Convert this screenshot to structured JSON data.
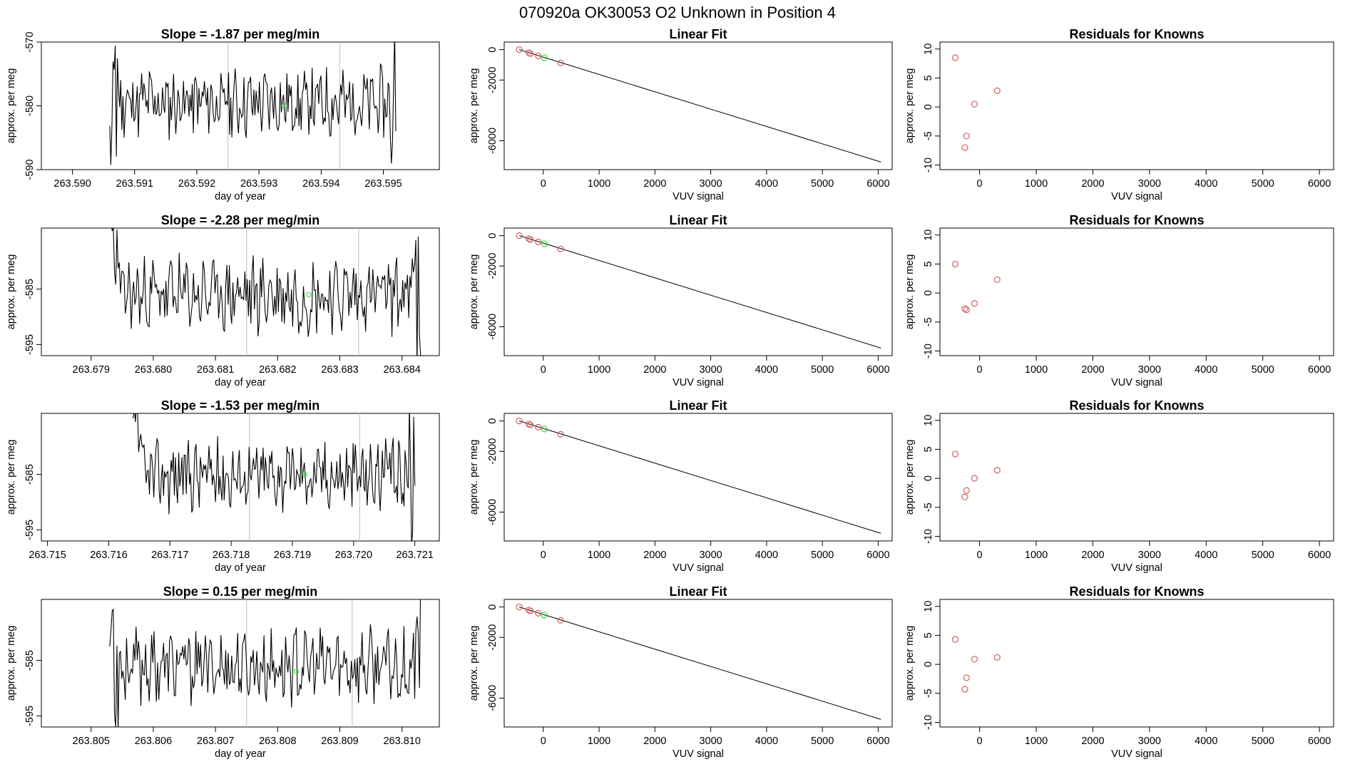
{
  "figure": {
    "title": "070920a      OK30053    O2 Unknown in Position  4"
  },
  "colors": {
    "known": "#d0605e",
    "unknown": "#33dd33",
    "line": "#000000",
    "vline": "#c8c8c8"
  },
  "rows": [
    {
      "timeseries": {
        "title": "Slope =  -1.87  per meg/min",
        "xlabel": "day of year",
        "ylabel": "approx. per meg",
        "xlim": [
          263.5895,
          263.5959
        ],
        "ylim": [
          -590,
          -570
        ],
        "xticks": [
          263.59,
          263.591,
          263.592,
          263.593,
          263.594,
          263.595
        ],
        "xtick_labels": [
          "263.590",
          "263.591",
          "263.592",
          "263.593",
          "263.594",
          "263.595"
        ],
        "yticks": [
          -590,
          -580,
          -570
        ],
        "ytick_labels": [
          "-590",
          "-580",
          "-570"
        ],
        "x_start": 263.5906,
        "x_end": 263.5952,
        "seed": 11,
        "center": -579.5,
        "amp": 4.6,
        "vlines": [
          263.5925,
          263.5943
        ],
        "unknown_point": [
          263.5934,
          -580
        ]
      },
      "fit": {
        "title": "Linear Fit",
        "xlabel": "VUV signal",
        "ylabel": "approx. per meg",
        "xlim": [
          -700,
          6250
        ],
        "ylim": [
          -7900,
          500
        ],
        "xticks": [
          0,
          1000,
          2000,
          3000,
          4000,
          5000,
          6000
        ],
        "xtick_labels": [
          "0",
          "1000",
          "2000",
          "3000",
          "4000",
          "5000",
          "6000"
        ],
        "yticks": [
          -6000,
          -2000,
          0
        ],
        "ytick_labels": [
          "-6000",
          "-2000",
          "0"
        ],
        "line": [
          [
            -430,
            0
          ],
          [
            6050,
            -7400
          ]
        ],
        "known_points": [
          [
            -430,
            2
          ],
          [
            -260,
            -200
          ],
          [
            -230,
            -260
          ],
          [
            -90,
            -410
          ],
          [
            310,
            -880
          ]
        ],
        "unknown_points": [
          [
            20,
            -530
          ]
        ]
      },
      "resid": {
        "title": "Residuals for Knowns",
        "xlabel": "VUV signal",
        "xlim": [
          -700,
          6250
        ],
        "ylim": [
          -10.8,
          11.2
        ],
        "xticks": [
          0,
          1000,
          2000,
          3000,
          4000,
          5000,
          6000
        ],
        "xtick_labels": [
          "0",
          "1000",
          "2000",
          "3000",
          "4000",
          "5000",
          "6000"
        ],
        "yticks": [
          -10,
          -5,
          0,
          5,
          10
        ],
        "ytick_labels": [
          "-10",
          "-5",
          "0",
          "5",
          "10"
        ],
        "points": [
          [
            -430,
            8.5
          ],
          [
            -260,
            -7
          ],
          [
            -230,
            -5
          ],
          [
            -90,
            0.5
          ],
          [
            310,
            2.8
          ]
        ]
      }
    },
    {
      "timeseries": {
        "title": "Slope =  -2.28  per meg/min",
        "xlabel": "day of year",
        "ylabel": "approx. per meg",
        "xlim": [
          263.6782,
          263.6846
        ],
        "ylim": [
          -597,
          -574
        ],
        "xticks": [
          263.679,
          263.68,
          263.681,
          263.682,
          263.683,
          263.684
        ],
        "xtick_labels": [
          "263.679",
          "263.680",
          "263.681",
          "263.682",
          "263.683",
          "263.684"
        ],
        "yticks": [
          -595,
          -585
        ],
        "ytick_labels": [
          "-595",
          "-585"
        ],
        "x_start": 263.6793,
        "x_end": 263.6843,
        "seed": 23,
        "center": -586,
        "amp": 5.8,
        "vlines": [
          263.6815,
          263.6833
        ],
        "unknown_point": [
          263.6825,
          -586
        ]
      },
      "fit": {
        "title": "Linear Fit",
        "xlabel": "VUV signal",
        "ylabel": "approx. per meg",
        "xlim": [
          -700,
          6250
        ],
        "ylim": [
          -7900,
          500
        ],
        "xticks": [
          0,
          1000,
          2000,
          3000,
          4000,
          5000,
          6000
        ],
        "xtick_labels": [
          "0",
          "1000",
          "2000",
          "3000",
          "4000",
          "5000",
          "6000"
        ],
        "yticks": [
          -6000,
          -2000,
          0
        ],
        "ytick_labels": [
          "-6000",
          "-2000",
          "0"
        ],
        "line": [
          [
            -430,
            0
          ],
          [
            6050,
            -7400
          ]
        ],
        "known_points": [
          [
            -430,
            2
          ],
          [
            -260,
            -200
          ],
          [
            -230,
            -260
          ],
          [
            -90,
            -410
          ],
          [
            310,
            -880
          ]
        ],
        "unknown_points": [
          [
            20,
            -530
          ]
        ]
      },
      "resid": {
        "title": "Residuals for Knowns",
        "xlabel": "VUV signal",
        "xlim": [
          -700,
          6250
        ],
        "ylim": [
          -10.8,
          11.2
        ],
        "xticks": [
          0,
          1000,
          2000,
          3000,
          4000,
          5000,
          6000
        ],
        "xtick_labels": [
          "0",
          "1000",
          "2000",
          "3000",
          "4000",
          "5000",
          "6000"
        ],
        "yticks": [
          -10,
          -5,
          0,
          5,
          10
        ],
        "ytick_labels": [
          "-10",
          "-5",
          "0",
          "5",
          "10"
        ],
        "points": [
          [
            -430,
            5
          ],
          [
            -260,
            -2.7
          ],
          [
            -230,
            -2.9
          ],
          [
            -90,
            -1.8
          ],
          [
            310,
            2.3
          ]
        ]
      }
    },
    {
      "timeseries": {
        "title": "Slope =  -1.53  per meg/min",
        "xlabel": "day of year",
        "ylabel": "approx. per meg",
        "xlim": [
          263.7149,
          263.7214
        ],
        "ylim": [
          -597,
          -574
        ],
        "xticks": [
          263.715,
          263.716,
          263.717,
          263.718,
          263.719,
          263.72,
          263.721
        ],
        "xtick_labels": [
          "263.715",
          "263.716",
          "263.717",
          "263.718",
          "263.719",
          "263.720",
          "263.721"
        ],
        "yticks": [
          -595,
          -585
        ],
        "ytick_labels": [
          "-595",
          "-585"
        ],
        "x_start": 263.7164,
        "x_end": 263.721,
        "seed": 37,
        "center": -585,
        "amp": 5.4,
        "vlines": [
          263.7183,
          263.7201
        ],
        "unknown_point": [
          263.7192,
          -585
        ]
      },
      "fit": {
        "title": "Linear Fit",
        "xlabel": "VUV signal",
        "ylabel": "approx. per meg",
        "xlim": [
          -700,
          6250
        ],
        "ylim": [
          -7900,
          500
        ],
        "xticks": [
          0,
          1000,
          2000,
          3000,
          4000,
          5000,
          6000
        ],
        "xtick_labels": [
          "0",
          "1000",
          "2000",
          "3000",
          "4000",
          "5000",
          "6000"
        ],
        "yticks": [
          -6000,
          -2000,
          0
        ],
        "ytick_labels": [
          "-6000",
          "-2000",
          "0"
        ],
        "line": [
          [
            -430,
            0
          ],
          [
            6050,
            -7400
          ]
        ],
        "known_points": [
          [
            -430,
            2
          ],
          [
            -260,
            -200
          ],
          [
            -230,
            -260
          ],
          [
            -90,
            -410
          ],
          [
            310,
            -880
          ]
        ],
        "unknown_points": [
          [
            20,
            -530
          ]
        ]
      },
      "resid": {
        "title": "Residuals for Knowns",
        "xlabel": "VUV signal",
        "xlim": [
          -700,
          6250
        ],
        "ylim": [
          -10.8,
          11.2
        ],
        "xticks": [
          0,
          1000,
          2000,
          3000,
          4000,
          5000,
          6000
        ],
        "xtick_labels": [
          "0",
          "1000",
          "2000",
          "3000",
          "4000",
          "5000",
          "6000"
        ],
        "yticks": [
          -10,
          -5,
          0,
          5,
          10
        ],
        "ytick_labels": [
          "-10",
          "-5",
          "0",
          "5",
          "10"
        ],
        "points": [
          [
            -430,
            4.2
          ],
          [
            -260,
            -3.2
          ],
          [
            -230,
            -2.1
          ],
          [
            -90,
            0
          ],
          [
            310,
            1.4
          ]
        ]
      }
    },
    {
      "timeseries": {
        "title": "Slope =  0.15  per meg/min",
        "xlabel": "day of year",
        "ylabel": "approx. per meg",
        "xlim": [
          263.8042,
          263.8106
        ],
        "ylim": [
          -597,
          -574
        ],
        "xticks": [
          263.805,
          263.806,
          263.807,
          263.808,
          263.809,
          263.81
        ],
        "xtick_labels": [
          "263.805",
          "263.806",
          "263.807",
          "263.808",
          "263.809",
          "263.810"
        ],
        "yticks": [
          -595,
          -585
        ],
        "ytick_labels": [
          "-595",
          "-585"
        ],
        "x_start": 263.8053,
        "x_end": 263.8103,
        "seed": 53,
        "center": -586,
        "amp": 5.6,
        "vlines": [
          263.8075,
          263.8092
        ],
        "unknown_point": [
          263.8083,
          -587
        ]
      },
      "fit": {
        "title": "Linear Fit",
        "xlabel": "VUV signal",
        "ylabel": "approx. per meg",
        "xlim": [
          -700,
          6250
        ],
        "ylim": [
          -7900,
          500
        ],
        "xticks": [
          0,
          1000,
          2000,
          3000,
          4000,
          5000,
          6000
        ],
        "xtick_labels": [
          "0",
          "1000",
          "2000",
          "3000",
          "4000",
          "5000",
          "6000"
        ],
        "yticks": [
          -6000,
          -2000,
          0
        ],
        "ytick_labels": [
          "-6000",
          "-2000",
          "0"
        ],
        "line": [
          [
            -430,
            0
          ],
          [
            6050,
            -7400
          ]
        ],
        "known_points": [
          [
            -430,
            2
          ],
          [
            -260,
            -200
          ],
          [
            -230,
            -260
          ],
          [
            -90,
            -410
          ],
          [
            310,
            -880
          ]
        ],
        "unknown_points": [
          [
            20,
            -530
          ]
        ]
      },
      "resid": {
        "title": "Residuals for Knowns",
        "xlabel": "VUV signal",
        "xlim": [
          -700,
          6250
        ],
        "ylim": [
          -10.8,
          11.2
        ],
        "xticks": [
          0,
          1000,
          2000,
          3000,
          4000,
          5000,
          6000
        ],
        "xtick_labels": [
          "0",
          "1000",
          "2000",
          "3000",
          "4000",
          "5000",
          "6000"
        ],
        "yticks": [
          -10,
          -5,
          0,
          5,
          10
        ],
        "ytick_labels": [
          "-10",
          "-5",
          "0",
          "5",
          "10"
        ],
        "points": [
          [
            -430,
            4.3
          ],
          [
            -260,
            -4.3
          ],
          [
            -230,
            -2.3
          ],
          [
            -90,
            0.9
          ],
          [
            310,
            1.2
          ]
        ]
      }
    }
  ],
  "chart_data": [
    {
      "type": "line",
      "title": "Slope =  -1.87  per meg/min",
      "xlabel": "day of year",
      "ylabel": "approx. per meg",
      "xlim": [
        263.5895,
        263.5959
      ],
      "ylim": [
        -590,
        -570
      ],
      "series": [
        {
          "values": "noisy trace around -580"
        }
      ]
    },
    {
      "type": "scatter",
      "title": "Linear Fit",
      "xlabel": "VUV signal",
      "ylabel": "approx. per meg",
      "xlim": [
        -700,
        6250
      ],
      "ylim": [
        -7900,
        500
      ]
    },
    {
      "type": "scatter",
      "title": "Residuals for Knowns",
      "xlabel": "VUV signal",
      "ylim": [
        -10.8,
        11.2
      ]
    }
  ]
}
